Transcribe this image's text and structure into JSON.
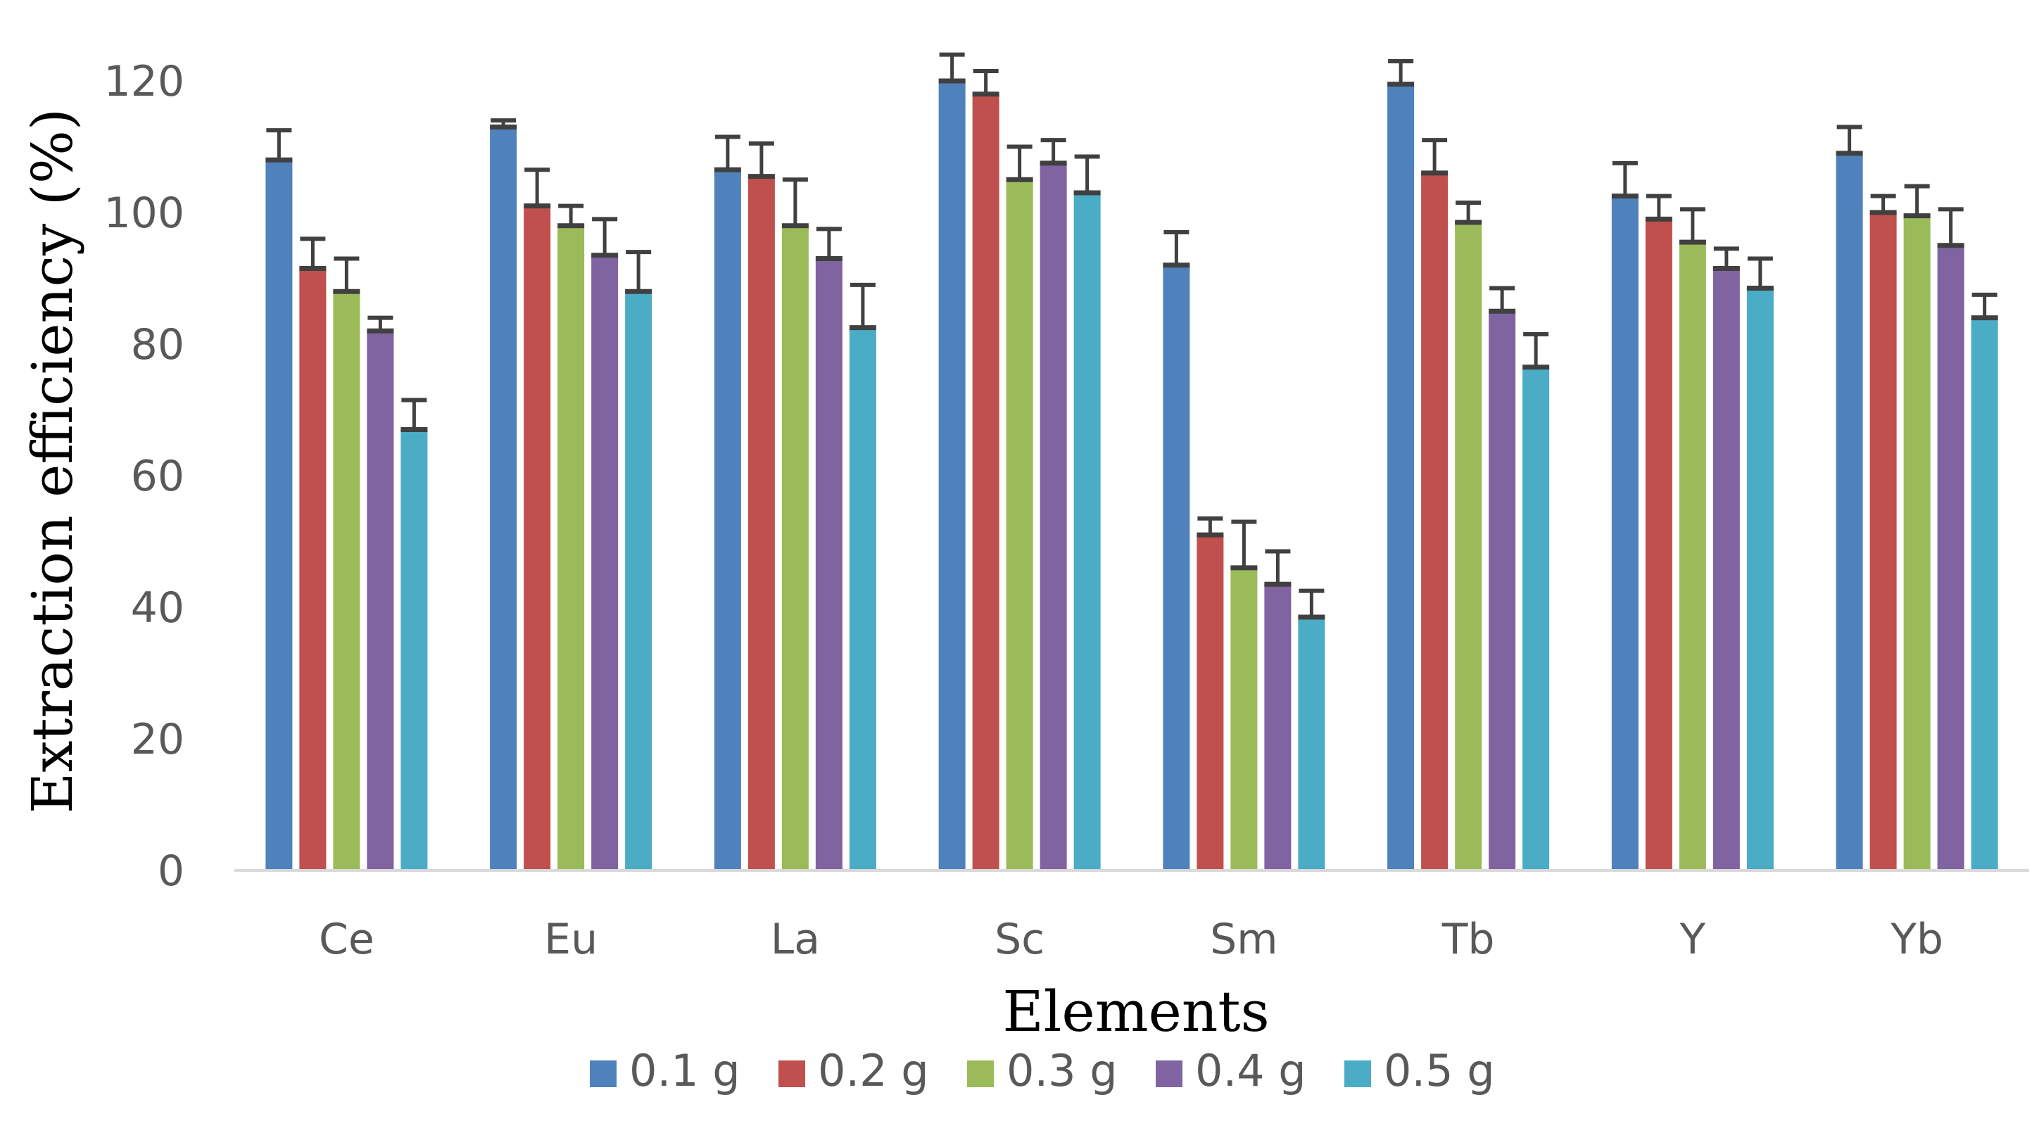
{
  "chart_data": {
    "type": "bar",
    "title": "",
    "xlabel": "Elements",
    "ylabel": "Extraction efficiency (%)",
    "ylim": [
      0,
      120
    ],
    "yticks": [
      0,
      20,
      40,
      60,
      80,
      100,
      120
    ],
    "ytick_labels": [
      "0",
      "20",
      "40",
      "60",
      "80",
      "100",
      "120"
    ],
    "categories": [
      "Ce",
      "Eu",
      "La",
      "Sc",
      "Sm",
      "Tb",
      "Y",
      "Yb"
    ],
    "legend_position": "bottom",
    "grid": false,
    "series": [
      {
        "name": "0.1 g",
        "color": "#4F81BD",
        "values": [
          108,
          113,
          106.5,
          120,
          92,
          119.5,
          102.5,
          109
        ],
        "errors": [
          4.5,
          1,
          5,
          4,
          5,
          3.5,
          5,
          4
        ]
      },
      {
        "name": "0.2 g",
        "color": "#C0504D",
        "values": [
          91.5,
          101,
          105.5,
          118,
          51,
          106,
          99,
          100
        ],
        "errors": [
          4.5,
          5.5,
          5,
          3.5,
          2.5,
          5,
          3.5,
          2.5
        ]
      },
      {
        "name": "0.3 g",
        "color": "#9BBB59",
        "values": [
          88,
          98,
          98,
          105,
          46,
          98.5,
          95.5,
          99.5
        ],
        "errors": [
          5,
          3,
          7,
          5,
          7,
          3,
          5,
          4.5
        ]
      },
      {
        "name": "0.4 g",
        "color": "#8064A2",
        "values": [
          82,
          93.5,
          93,
          107.5,
          43.5,
          85,
          91.5,
          95
        ],
        "errors": [
          2,
          5.5,
          4.5,
          3.5,
          5,
          3.5,
          3,
          5.5
        ]
      },
      {
        "name": "0.5 g",
        "color": "#4BACC6",
        "values": [
          67,
          88,
          82.5,
          103,
          38.5,
          76.5,
          88.5,
          84
        ],
        "errors": [
          4.5,
          6,
          6.5,
          5.5,
          4,
          5,
          4.5,
          3.5
        ]
      }
    ]
  }
}
